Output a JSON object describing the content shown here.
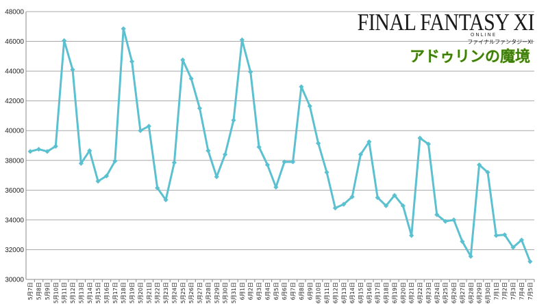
{
  "logo": {
    "title": "FINAL FANTASY XI",
    "subtitle": "ONLINE",
    "kana": "ファイナルファンタジーXI",
    "expansion": "アドゥリンの魔境"
  },
  "colors": {
    "line": "#5bc0d0",
    "grid": "#a8a8a8",
    "axis": "#888888",
    "logo_green": "#3c7d0c"
  },
  "chart_data": {
    "type": "line",
    "title": "",
    "xlabel": "",
    "ylabel": "",
    "ylim": [
      30000,
      48000
    ],
    "yticks": [
      30000,
      32000,
      34000,
      36000,
      38000,
      40000,
      42000,
      44000,
      46000,
      48000
    ],
    "grid": true,
    "marker": "diamond",
    "categories": [
      "5月7日",
      "5月8日",
      "5月9日",
      "5月10日",
      "5月11日",
      "5月12日",
      "5月13日",
      "5月14日",
      "5月15日",
      "5月16日",
      "5月17日",
      "5月18日",
      "5月19日",
      "5月20日",
      "5月21日",
      "5月22日",
      "5月23日",
      "5月24日",
      "5月25日",
      "5月26日",
      "5月27日",
      "5月28日",
      "5月29日",
      "5月30日",
      "5月31日",
      "6月1日",
      "6月2日",
      "6月3日",
      "6月4日",
      "6月5日",
      "6月6日",
      "6月7日",
      "6月8日",
      "6月9日",
      "6月10日",
      "6月11日",
      "6月12日",
      "6月13日",
      "6月14日",
      "6月15日",
      "6月16日",
      "6月17日",
      "6月18日",
      "6月19日",
      "6月20日",
      "6月21日",
      "6月22日",
      "6月23日",
      "6月24日",
      "6月25日",
      "6月26日",
      "6月27日",
      "6月28日",
      "6月29日",
      "6月30日",
      "7月1日",
      "7月2日",
      "7月3日",
      "7月4日",
      "7月5日"
    ],
    "values": [
      38600,
      38750,
      38600,
      38950,
      46050,
      44100,
      37800,
      38650,
      36600,
      36950,
      37950,
      46850,
      44650,
      40000,
      40300,
      36150,
      35350,
      37850,
      44750,
      43500,
      41500,
      38650,
      36900,
      38400,
      40700,
      46100,
      43950,
      38900,
      37700,
      36200,
      37900,
      37900,
      42950,
      41650,
      39150,
      37200,
      34800,
      35050,
      35550,
      38400,
      39250,
      35500,
      34950,
      35650,
      34950,
      32950,
      39500,
      39100,
      34350,
      33900,
      34000,
      32550,
      31550,
      37700,
      37200,
      32950,
      33000,
      32150,
      32650,
      31200
    ]
  }
}
